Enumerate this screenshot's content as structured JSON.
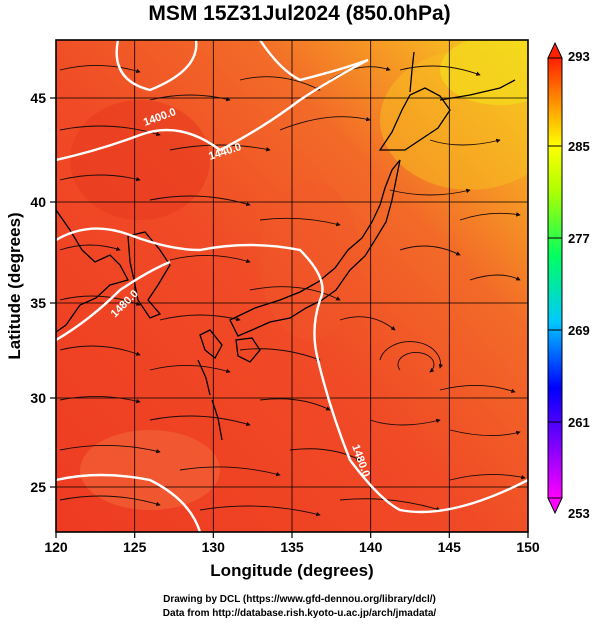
{
  "title": "MSM 15Z31Jul2024 (850.0hPa)",
  "axes": {
    "xlabel": "Longitude (degrees)",
    "ylabel": "Latitude  (degrees)",
    "xticks": [
      "120",
      "125",
      "130",
      "135",
      "140",
      "145",
      "150"
    ],
    "yticks": [
      "25",
      "30",
      "35",
      "40",
      "45"
    ]
  },
  "colorbar": {
    "max_label": "293",
    "min_label": "253",
    "labels": [
      "285",
      "277",
      "269",
      "261"
    ]
  },
  "contour_labels": [
    "1400.0",
    "1440.0",
    "1480.0",
    "1480.0"
  ],
  "credits": {
    "line1": "Drawing by DCL (https://www.gfd-dennou.org/library/dcl/)",
    "line2": "Data from http://database.rish.kyoto-u.ac.jp/arch/jmadata/"
  },
  "colors": {
    "field_warm": "#ef3f24",
    "field_hot": "#f06a2a",
    "field_yellow": "#f5d21e",
    "streamline": "#1a0a0a",
    "contour": "#ffffff"
  }
}
